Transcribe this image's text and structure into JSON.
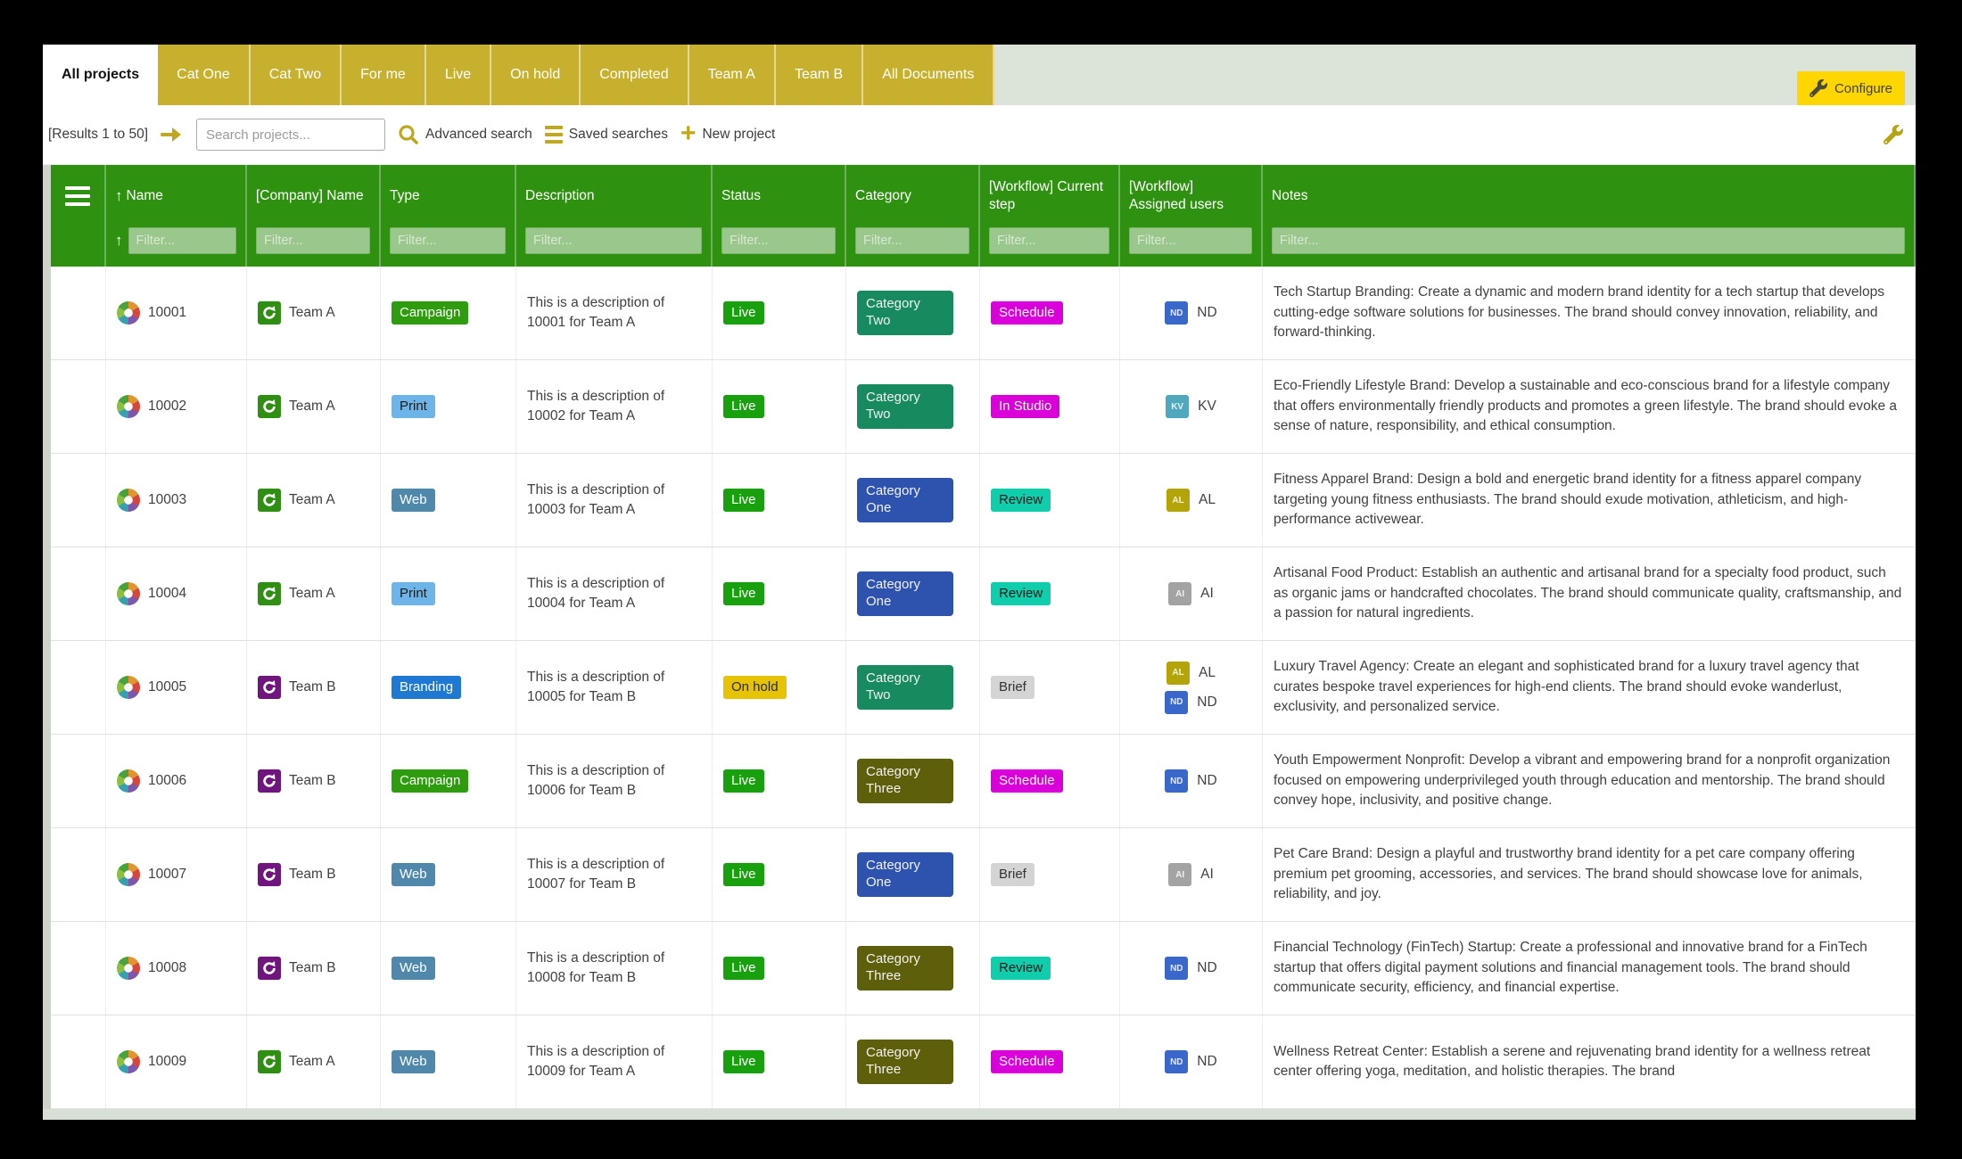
{
  "tabs": {
    "items": [
      {
        "label": "All projects",
        "active": true
      },
      {
        "label": "Cat One",
        "active": false
      },
      {
        "label": "Cat Two",
        "active": false
      },
      {
        "label": "For me",
        "active": false
      },
      {
        "label": "Live",
        "active": false
      },
      {
        "label": "On hold",
        "active": false
      },
      {
        "label": "Completed",
        "active": false
      },
      {
        "label": "Team A",
        "active": false
      },
      {
        "label": "Team B",
        "active": false
      },
      {
        "label": "All Documents",
        "active": false
      }
    ],
    "configure_label": "Configure"
  },
  "toolbar": {
    "results_label": "[Results 1 to 50]",
    "search_placeholder": "Search projects...",
    "advanced_search_label": "Advanced search",
    "saved_searches_label": "Saved searches",
    "new_project_label": "New project"
  },
  "table": {
    "filter_placeholder": "Filter...",
    "columns": [
      {
        "label": "Name",
        "sorted": true
      },
      {
        "label": "[Company] Name",
        "sorted": false
      },
      {
        "label": "Type",
        "sorted": false
      },
      {
        "label": "Description",
        "sorted": false
      },
      {
        "label": "Status",
        "sorted": false
      },
      {
        "label": "Category",
        "sorted": false
      },
      {
        "label": "[Workflow] Current step",
        "sorted": false
      },
      {
        "label": "[Workflow] Assigned users",
        "sorted": false
      },
      {
        "label": "Notes",
        "sorted": false
      }
    ],
    "badge_styles": {
      "Campaign": {
        "bg": "#2f9b0e",
        "fg": "#ffffff"
      },
      "Print": {
        "bg": "#6db4e8",
        "fg": "#1c1c1c"
      },
      "Web": {
        "bg": "#4f88aa",
        "fg": "#ffffff"
      },
      "Branding": {
        "bg": "#1f78d1",
        "fg": "#ffffff"
      },
      "Live": {
        "bg": "#18a00f",
        "fg": "#ffffff"
      },
      "On hold": {
        "bg": "#e6c405",
        "fg": "#2a2a2a"
      },
      "Category One": {
        "bg": "#2e53ae",
        "fg": "#f2f2f2"
      },
      "Category Two": {
        "bg": "#178a60",
        "fg": "#f2f2f2"
      },
      "Category Three": {
        "bg": "#5d5f0b",
        "fg": "#f2f2f2"
      },
      "Schedule": {
        "bg": "#da00da",
        "fg": "#ffffff"
      },
      "In Studio": {
        "bg": "#da00da",
        "fg": "#ffffff"
      },
      "Review": {
        "bg": "#10ceac",
        "fg": "#1c1c1c"
      },
      "Brief": {
        "bg": "#d4d4d4",
        "fg": "#333333"
      }
    },
    "avatar_colors": {
      "ND": "#3a68ca",
      "KV": "#4fa8bd",
      "AL": "#b3a509",
      "AI": "#a3a3a3"
    },
    "team_colors": {
      "Team A": "#2f8f12",
      "Team B": "#70157e"
    },
    "rows": [
      {
        "name": "10001",
        "company": "Team A",
        "type": "Campaign",
        "description": "This is a description of 10001 for Team A",
        "status": "Live",
        "category": "Category Two",
        "current_step": "Schedule",
        "assigned": [
          "ND"
        ],
        "notes": "Tech Startup Branding: Create a dynamic and modern brand identity for a tech startup that develops cutting-edge software solutions for businesses. The brand should convey innovation, reliability, and forward-thinking."
      },
      {
        "name": "10002",
        "company": "Team A",
        "type": "Print",
        "description": "This is a description of 10002 for Team A",
        "status": "Live",
        "category": "Category Two",
        "current_step": "In Studio",
        "assigned": [
          "KV"
        ],
        "notes": "Eco-Friendly Lifestyle Brand: Develop a sustainable and eco-conscious brand for a lifestyle company that offers environmentally friendly products and promotes a green lifestyle. The brand should evoke a sense of nature, responsibility, and ethical consumption."
      },
      {
        "name": "10003",
        "company": "Team A",
        "type": "Web",
        "description": "This is a description of 10003 for Team A",
        "status": "Live",
        "category": "Category One",
        "current_step": "Review",
        "assigned": [
          "AL"
        ],
        "notes": "Fitness Apparel Brand: Design a bold and energetic brand identity for a fitness apparel company targeting young fitness enthusiasts. The brand should exude motivation, athleticism, and high-performance activewear."
      },
      {
        "name": "10004",
        "company": "Team A",
        "type": "Print",
        "description": "This is a description of 10004 for Team A",
        "status": "Live",
        "category": "Category One",
        "current_step": "Review",
        "assigned": [
          "AI"
        ],
        "notes": "Artisanal Food Product: Establish an authentic and artisanal brand for a specialty food product, such as organic jams or handcrafted chocolates. The brand should communicate quality, craftsmanship, and a passion for natural ingredients."
      },
      {
        "name": "10005",
        "company": "Team B",
        "type": "Branding",
        "description": "This is a description of 10005 for Team B",
        "status": "On hold",
        "category": "Category Two",
        "current_step": "Brief",
        "assigned": [
          "AL",
          "ND"
        ],
        "notes": "Luxury Travel Agency: Create an elegant and sophisticated brand for a luxury travel agency that curates bespoke travel experiences for high-end clients. The brand should evoke wanderlust, exclusivity, and personalized service."
      },
      {
        "name": "10006",
        "company": "Team B",
        "type": "Campaign",
        "description": "This is a description of 10006 for Team B",
        "status": "Live",
        "category": "Category Three",
        "current_step": "Schedule",
        "assigned": [
          "ND"
        ],
        "notes": "Youth Empowerment Nonprofit: Develop a vibrant and empowering brand for a nonprofit organization focused on empowering underprivileged youth through education and mentorship. The brand should convey hope, inclusivity, and positive change."
      },
      {
        "name": "10007",
        "company": "Team B",
        "type": "Web",
        "description": "This is a description of 10007 for Team B",
        "status": "Live",
        "category": "Category One",
        "current_step": "Brief",
        "assigned": [
          "AI"
        ],
        "notes": "Pet Care Brand: Design a playful and trustworthy brand identity for a pet care company offering premium pet grooming, accessories, and services. The brand should showcase love for animals, reliability, and joy."
      },
      {
        "name": "10008",
        "company": "Team B",
        "type": "Web",
        "description": "This is a description of 10008 for Team B",
        "status": "Live",
        "category": "Category Three",
        "current_step": "Review",
        "assigned": [
          "ND"
        ],
        "notes": "Financial Technology (FinTech) Startup: Create a professional and innovative brand for a FinTech startup that offers digital payment solutions and financial management tools. The brand should communicate security, efficiency, and financial expertise."
      },
      {
        "name": "10009",
        "company": "Team A",
        "type": "Web",
        "description": "This is a description of 10009 for Team A",
        "status": "Live",
        "category": "Category Three",
        "current_step": "Schedule",
        "assigned": [
          "ND"
        ],
        "notes": "Wellness Retreat Center: Establish a serene and rejuvenating brand identity for a wellness retreat center offering yoga, meditation, and holistic therapies. The brand"
      }
    ]
  }
}
